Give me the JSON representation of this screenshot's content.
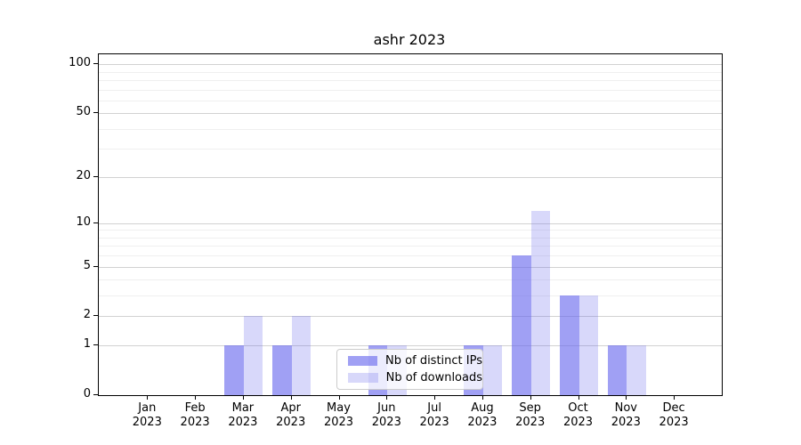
{
  "chart_data": {
    "type": "bar",
    "title": "ashr 2023",
    "categories": [
      "Jan",
      "Feb",
      "Mar",
      "Apr",
      "May",
      "Jun",
      "Jul",
      "Aug",
      "Sep",
      "Oct",
      "Nov",
      "Dec"
    ],
    "category_year": "2023",
    "series": [
      {
        "name": "Nb of distinct IPs",
        "values": [
          0,
          0,
          1,
          1,
          0,
          1,
          0,
          1,
          6,
          3,
          1,
          0
        ],
        "color": "rgba(101,101,237,0.62)"
      },
      {
        "name": "Nb of downloads",
        "values": [
          0,
          0,
          2,
          2,
          0,
          1,
          0,
          1,
          12,
          3,
          1,
          0
        ],
        "color": "rgba(101,101,237,0.25)"
      }
    ],
    "y_axis": {
      "scale": "log1p",
      "tick_values": [
        0,
        1,
        2,
        5,
        10,
        20,
        50,
        100
      ],
      "tick_labels": [
        "0",
        "1",
        "2",
        "5",
        "10",
        "20",
        "50",
        "100"
      ],
      "minor_tick_values": [
        3,
        4,
        6,
        7,
        8,
        9,
        30,
        40,
        60,
        70,
        80,
        90
      ],
      "ymin": 0,
      "ymax": 115
    },
    "xlabel": "",
    "ylabel": "",
    "grid": true,
    "legend_position": "lower center",
    "colors": {
      "bar_dark": "rgba(101,101,237,0.62)",
      "bar_light": "rgba(101,101,237,0.25)",
      "major_grid": "#d2d2d2",
      "minor_grid": "#efefef",
      "axis": "#000000"
    }
  }
}
